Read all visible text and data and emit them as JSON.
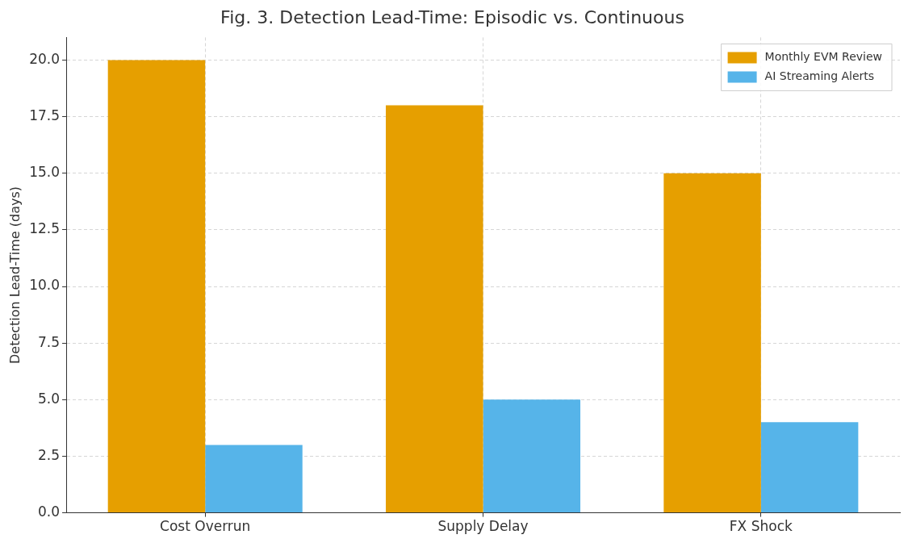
{
  "chart_data": {
    "type": "bar",
    "title": "Fig. 3. Detection Lead-Time: Episodic vs. Continuous",
    "ylabel": "Detection Lead-Time (days)",
    "categories": [
      "Cost Overrun",
      "Supply Delay",
      "FX Shock"
    ],
    "series": [
      {
        "name": "Monthly EVM Review",
        "color": "#e69f00",
        "values": [
          20,
          18,
          15
        ]
      },
      {
        "name": "AI Streaming Alerts",
        "color": "#56b4e9",
        "values": [
          3,
          5,
          4
        ]
      }
    ],
    "ylim": [
      0,
      21
    ],
    "yticks": [
      {
        "value": 0,
        "label": "0.0"
      },
      {
        "value": 2.5,
        "label": "2.5"
      },
      {
        "value": 5,
        "label": "5.0"
      },
      {
        "value": 7.5,
        "label": "7.5"
      },
      {
        "value": 10,
        "label": "10.0"
      },
      {
        "value": 12.5,
        "label": "12.5"
      },
      {
        "value": 15,
        "label": "15.0"
      },
      {
        "value": 17.5,
        "label": "17.5"
      },
      {
        "value": 20,
        "label": "20.0"
      }
    ],
    "grid": true,
    "legend": "top right"
  }
}
